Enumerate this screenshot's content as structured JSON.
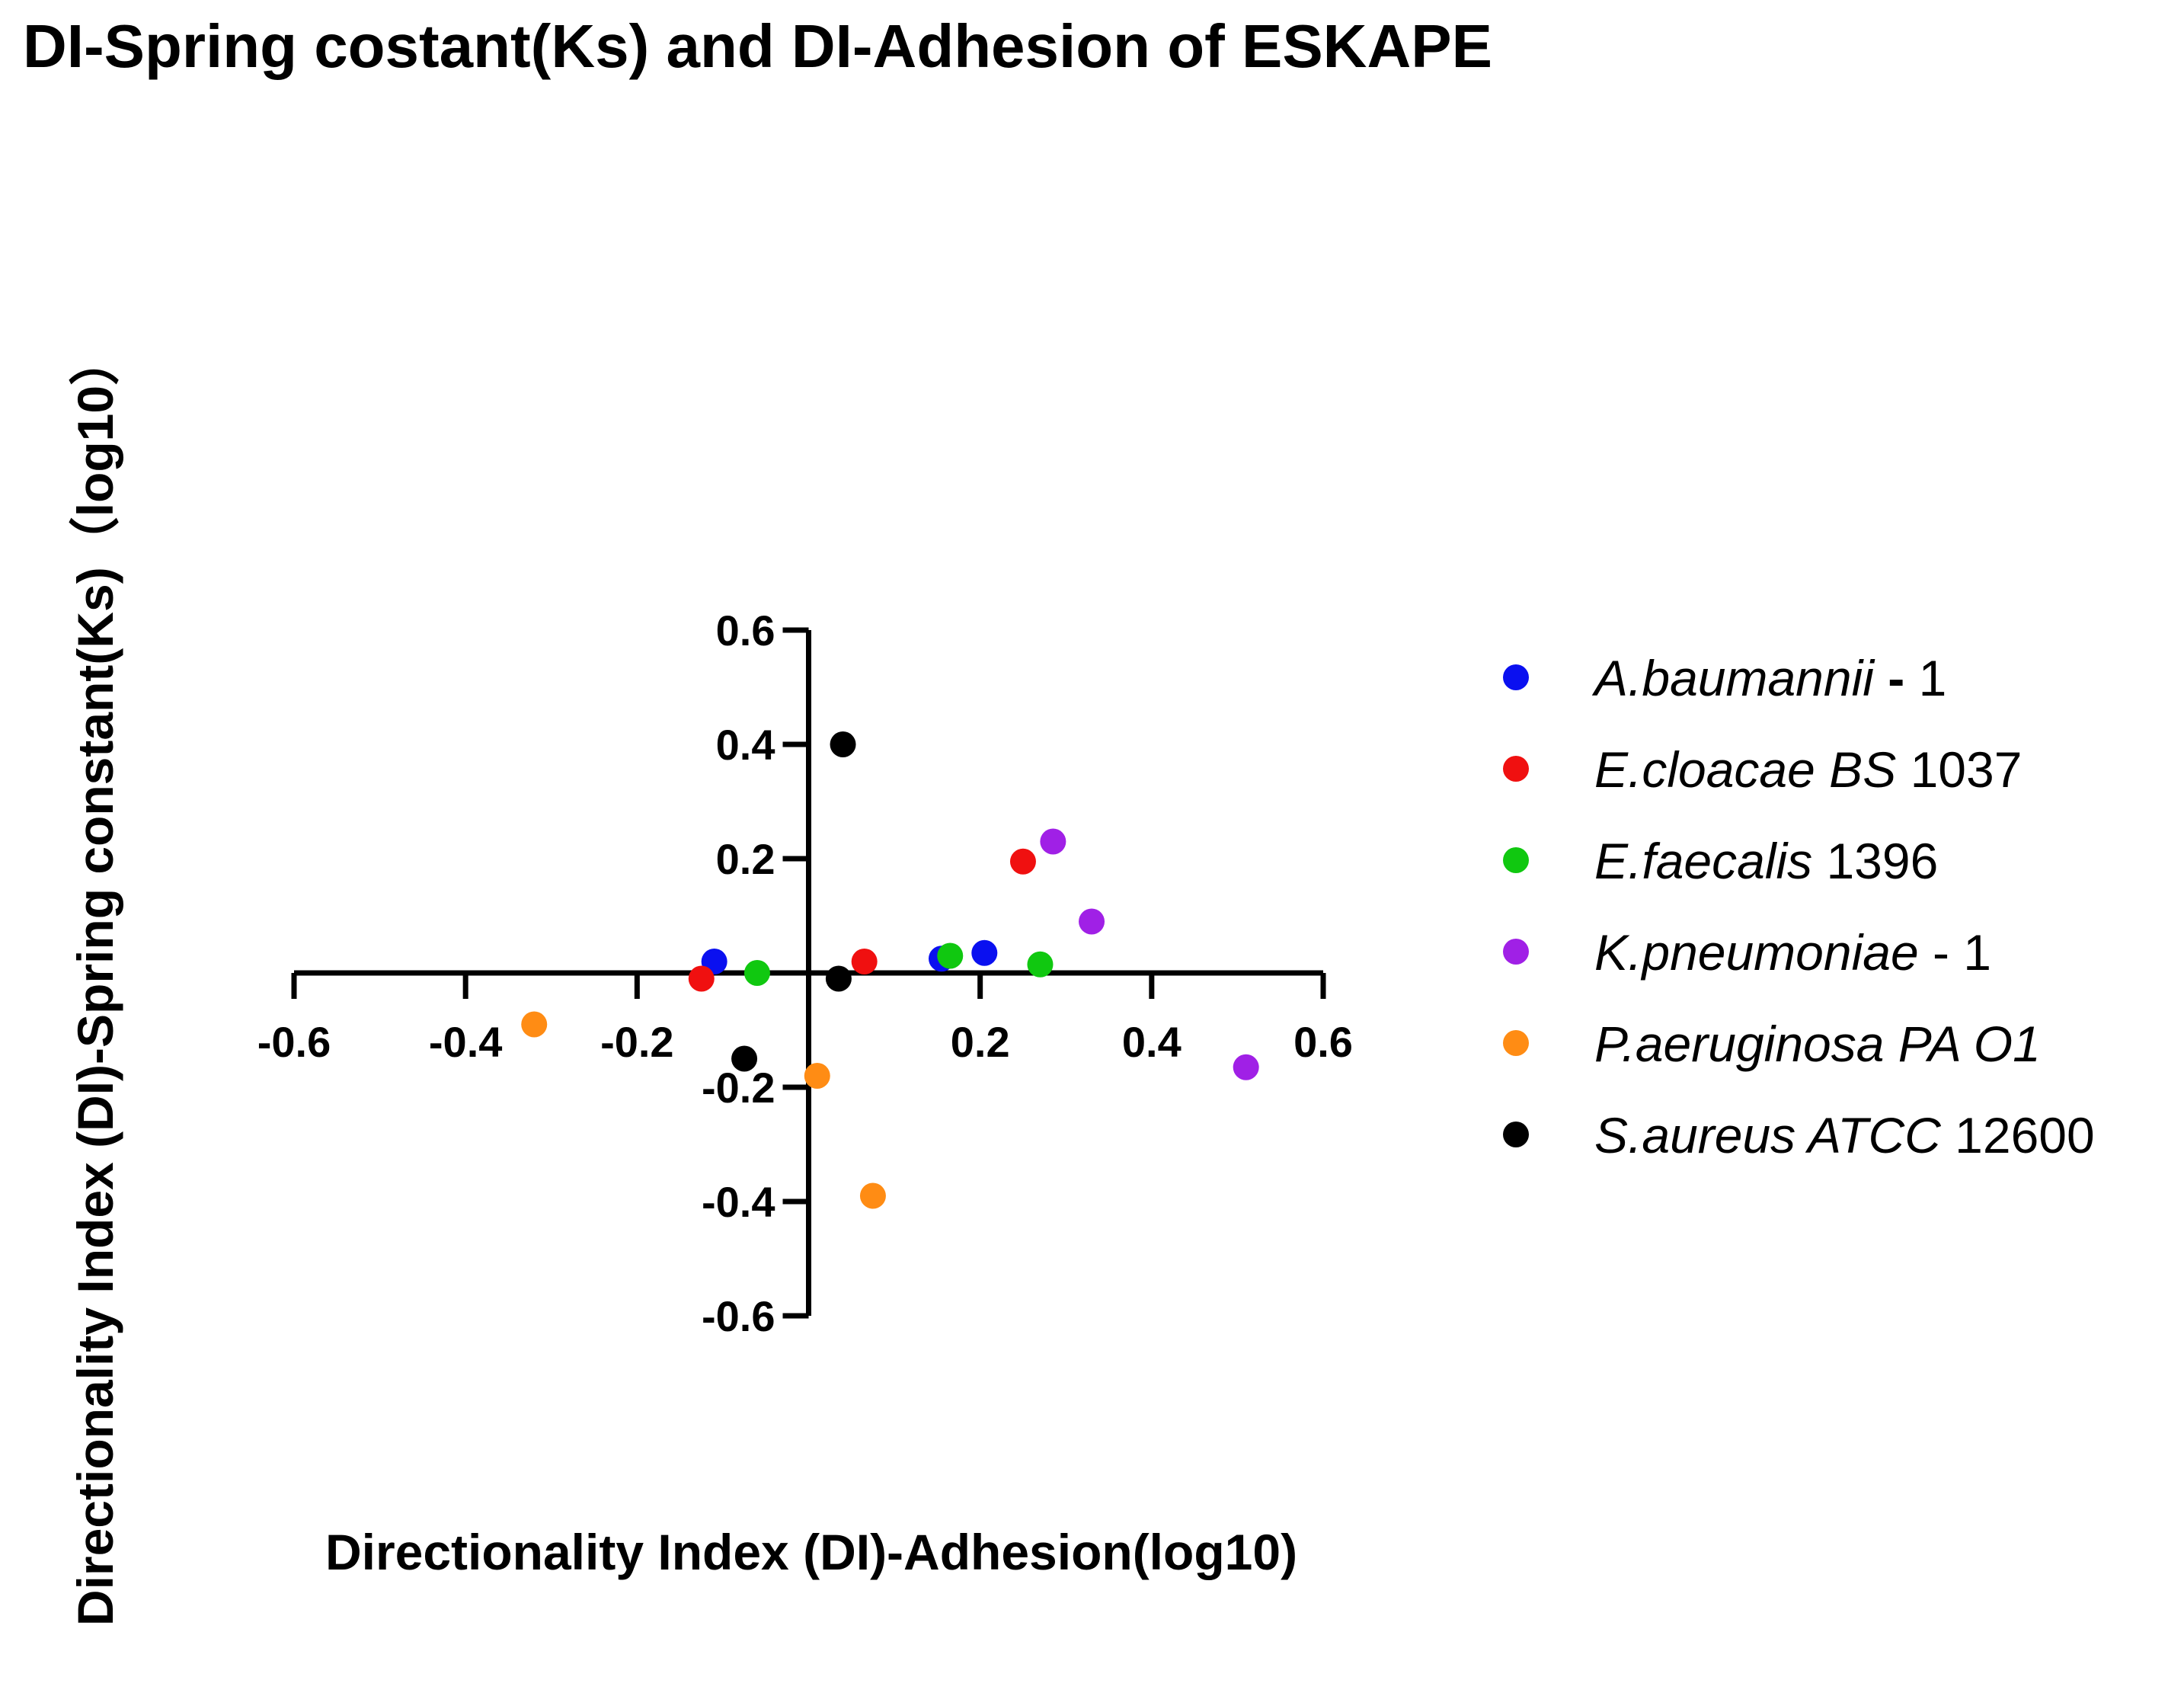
{
  "chart_data": {
    "type": "scatter",
    "title": "DI-Spring costant(Ks) and DI-Adhesion of ESKAPE",
    "xlabel": "Directionality Index (DI)-Adhesion(log10)",
    "ylabel": "Directionality Index (DI)-Spring constant(Ks)（log10）",
    "xlim": [
      -0.6,
      0.6
    ],
    "ylim": [
      -0.6,
      0.6
    ],
    "xticks": [
      -0.6,
      -0.4,
      -0.2,
      0.2,
      0.4,
      0.6
    ],
    "xtick_labels": [
      "-0.6",
      "-0.4",
      "-0.2",
      "0.2",
      "0.4",
      "0.6"
    ],
    "yticks": [
      0.6,
      0.4,
      0.2,
      -0.2,
      -0.4,
      -0.6
    ],
    "ytick_labels": [
      "0.6",
      "0.4",
      "0.2",
      "-0.2",
      "-0.4",
      "-0.6"
    ],
    "legend_position": "right",
    "series": [
      {
        "name": "A.baumannii - 1",
        "name_parts": [
          {
            "t": "A.baumannii",
            "italic": true
          },
          {
            "t": " - ",
            "bold": true
          },
          {
            "t": "1"
          }
        ],
        "color": "#0a10f0",
        "points": [
          [
            -0.11,
            0.02
          ],
          [
            0.155,
            0.025
          ],
          [
            0.205,
            0.035
          ]
        ]
      },
      {
        "name": "E.cloacae BS 1037",
        "name_parts": [
          {
            "t": "E.cloacae BS",
            "italic": true
          },
          {
            "t": " 1037"
          }
        ],
        "color": "#f01010",
        "points": [
          [
            -0.125,
            -0.01
          ],
          [
            0.065,
            0.02
          ],
          [
            0.25,
            0.195
          ]
        ]
      },
      {
        "name": "E.faecalis 1396",
        "name_parts": [
          {
            "t": "E.faecalis",
            "italic": true
          },
          {
            "t": " 1396"
          }
        ],
        "color": "#10c810",
        "points": [
          [
            -0.06,
            0.0
          ],
          [
            0.165,
            0.03
          ],
          [
            0.27,
            0.015
          ]
        ]
      },
      {
        "name": "K.pneumoniae - 1",
        "name_parts": [
          {
            "t": "K.pneumoniae",
            "italic": true
          },
          {
            "t": " - 1"
          }
        ],
        "color": "#a020e6",
        "points": [
          [
            0.285,
            0.23
          ],
          [
            0.33,
            0.09
          ],
          [
            0.51,
            -0.165
          ]
        ]
      },
      {
        "name": "P.aeruginosa PA O1",
        "name_parts": [
          {
            "t": "P.aeruginosa PA O1",
            "italic": true
          }
        ],
        "color": "#ff8c14",
        "points": [
          [
            -0.32,
            -0.09
          ],
          [
            0.01,
            -0.18
          ],
          [
            0.075,
            -0.39
          ]
        ]
      },
      {
        "name": "S.aureus ATCC 12600",
        "name_parts": [
          {
            "t": "S.aureus ATCC",
            "italic": true
          },
          {
            "t": " 12600"
          }
        ],
        "color": "#000000",
        "points": [
          [
            0.04,
            0.4
          ],
          [
            0.035,
            -0.01
          ],
          [
            -0.075,
            -0.15
          ]
        ]
      }
    ]
  }
}
